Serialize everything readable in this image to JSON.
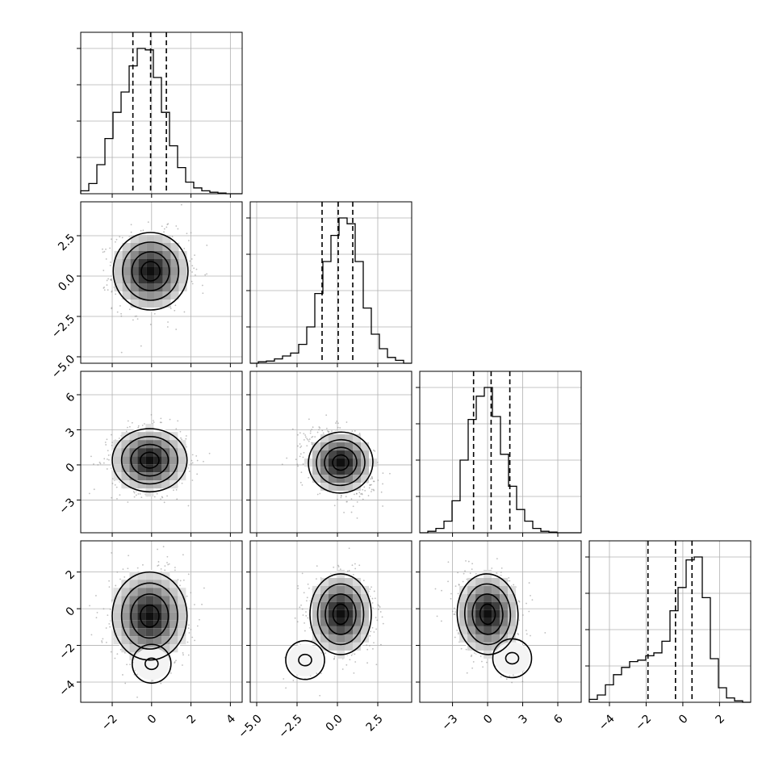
{
  "chart_data": {
    "type": "corner",
    "title": "",
    "grid": true,
    "n_params": 4,
    "parameters": [
      {
        "index": 0,
        "name": "",
        "range": [
          -3.6,
          4.6
        ],
        "ticks": [
          -2,
          0,
          2,
          4
        ],
        "tick_labels": [
          "−2",
          "0",
          "2",
          "4"
        ],
        "quantiles": [
          -0.95,
          -0.05,
          0.75
        ],
        "hist_edges_start": -3.6,
        "hist_bin_width": 0.41,
        "hist_counts": [
          0.02,
          0.07,
          0.2,
          0.38,
          0.56,
          0.7,
          0.88,
          1.0,
          0.99,
          0.8,
          0.56,
          0.33,
          0.18,
          0.08,
          0.04,
          0.02,
          0.01,
          0.005,
          0.0,
          0.0
        ]
      },
      {
        "index": 1,
        "name": "",
        "range": [
          -5.4,
          4.6
        ],
        "ticks": [
          -5.0,
          -2.5,
          0.0,
          2.5
        ],
        "tick_labels": [
          "−5.0",
          "−2.5",
          "0.0",
          "2.5"
        ],
        "quantiles": [
          -0.95,
          0.05,
          0.95
        ],
        "hist_edges_start": -5.4,
        "hist_bin_width": 0.5,
        "hist_counts": [
          0.0,
          0.01,
          0.015,
          0.03,
          0.05,
          0.07,
          0.13,
          0.25,
          0.48,
          0.7,
          0.88,
          1.0,
          0.96,
          0.7,
          0.38,
          0.2,
          0.1,
          0.04,
          0.02,
          0.0
        ]
      },
      {
        "index": 2,
        "name": "",
        "range": [
          -5.8,
          8.0
        ],
        "ticks": [
          -3,
          0,
          3,
          6
        ],
        "tick_labels": [
          "−3",
          "0",
          "3",
          "6"
        ],
        "quantiles": [
          -1.2,
          0.3,
          1.9
        ],
        "hist_edges_start": -5.8,
        "hist_bin_width": 0.69,
        "hist_counts": [
          0.0,
          0.01,
          0.03,
          0.08,
          0.22,
          0.5,
          0.78,
          0.94,
          1.0,
          0.8,
          0.54,
          0.32,
          0.16,
          0.08,
          0.03,
          0.01,
          0.005,
          0.0,
          0.0,
          0.0
        ]
      },
      {
        "index": 3,
        "name": "",
        "range": [
          -5.1,
          3.7
        ],
        "ticks": [
          -4,
          -2,
          0,
          2
        ],
        "tick_labels": [
          "−4",
          "−2",
          "0",
          "2"
        ],
        "quantiles": [
          -1.9,
          -0.4,
          0.5
        ],
        "hist_edges_start": -5.1,
        "hist_bin_width": 0.44,
        "hist_counts": [
          0.02,
          0.05,
          0.12,
          0.19,
          0.24,
          0.28,
          0.29,
          0.32,
          0.34,
          0.42,
          0.63,
          0.79,
          0.98,
          1.0,
          0.72,
          0.3,
          0.1,
          0.03,
          0.01,
          0.0
        ]
      }
    ],
    "pairs": [
      {
        "x": 0,
        "y": 1,
        "center": [
          -0.05,
          0.3
        ],
        "sd": [
          0.95,
          1.2
        ],
        "corr": 0.0
      },
      {
        "x": 0,
        "y": 2,
        "center": [
          -0.1,
          0.4
        ],
        "sd": [
          0.95,
          1.35
        ],
        "corr": 0.0
      },
      {
        "x": 0,
        "y": 3,
        "center": [
          -0.1,
          -0.4
        ],
        "sd": [
          0.95,
          1.2
        ],
        "corr": 0.0,
        "tail": [
          0.0,
          -3.0
        ]
      },
      {
        "x": 1,
        "y": 2,
        "center": [
          0.2,
          0.2
        ],
        "sd": [
          1.0,
          1.3
        ],
        "corr": -0.35
      },
      {
        "x": 1,
        "y": 3,
        "center": [
          0.2,
          -0.3
        ],
        "sd": [
          0.95,
          1.1
        ],
        "corr": 0.0,
        "tail": [
          -2.0,
          -2.8
        ]
      },
      {
        "x": 2,
        "y": 3,
        "center": [
          0.0,
          -0.3
        ],
        "sd": [
          1.3,
          1.1
        ],
        "corr": -0.1,
        "tail": [
          2.1,
          -2.7
        ]
      }
    ]
  }
}
